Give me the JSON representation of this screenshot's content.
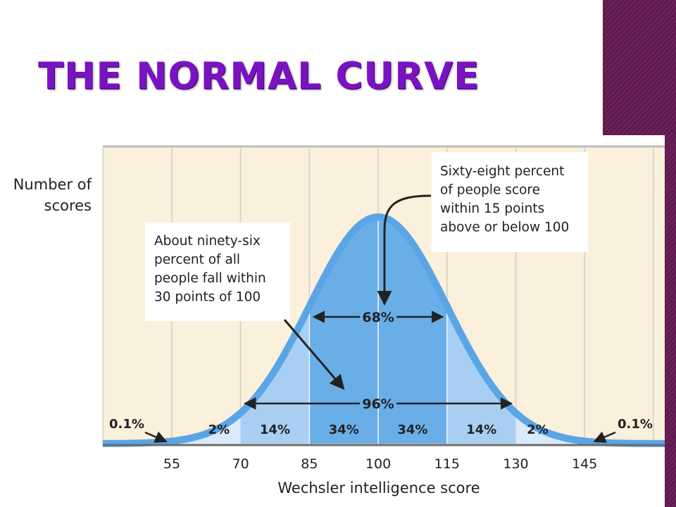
{
  "slide": {
    "title": "The Normal Curve"
  },
  "chart_data": {
    "type": "area",
    "distribution": "normal",
    "mean": 100,
    "sd": 15,
    "ylabel_lines": [
      "Number of",
      "scores"
    ],
    "xlabel": "Wechsler intelligence score",
    "x_ticks": [
      55,
      70,
      85,
      100,
      115,
      130,
      145
    ],
    "xlim": [
      40,
      160
    ],
    "grid": "vertical",
    "band_percentages": [
      {
        "from": 55,
        "to": 70,
        "label": "2%"
      },
      {
        "from": 70,
        "to": 85,
        "label": "14%"
      },
      {
        "from": 85,
        "to": 100,
        "label": "34%"
      },
      {
        "from": 100,
        "to": 115,
        "label": "34%"
      },
      {
        "from": 115,
        "to": 130,
        "label": "14%"
      },
      {
        "from": 130,
        "to": 145,
        "label": "2%"
      }
    ],
    "tail_labels": {
      "left": "0.1%",
      "right": "0.1%"
    },
    "range_markers": [
      {
        "from": 85,
        "to": 115,
        "label": "68%"
      },
      {
        "from": 70,
        "to": 130,
        "label": "96%"
      }
    ],
    "annotations": [
      {
        "target": "68%",
        "lines": [
          "Sixty-eight percent",
          "of people score",
          "within 15 points",
          "above or below 100"
        ]
      },
      {
        "target": "96%",
        "lines": [
          "About ninety-six",
          "percent of all",
          "people fall within",
          "30 points of 100"
        ]
      }
    ],
    "colors": {
      "background": "#fbf0dc",
      "grid": "#dcd6c8",
      "curve": "#5aa5e6",
      "fill_inner": "#6aaee8",
      "fill_middle": "#a8cff3",
      "fill_outer": "#d9eafa",
      "axis": "#6b6b6b"
    }
  }
}
